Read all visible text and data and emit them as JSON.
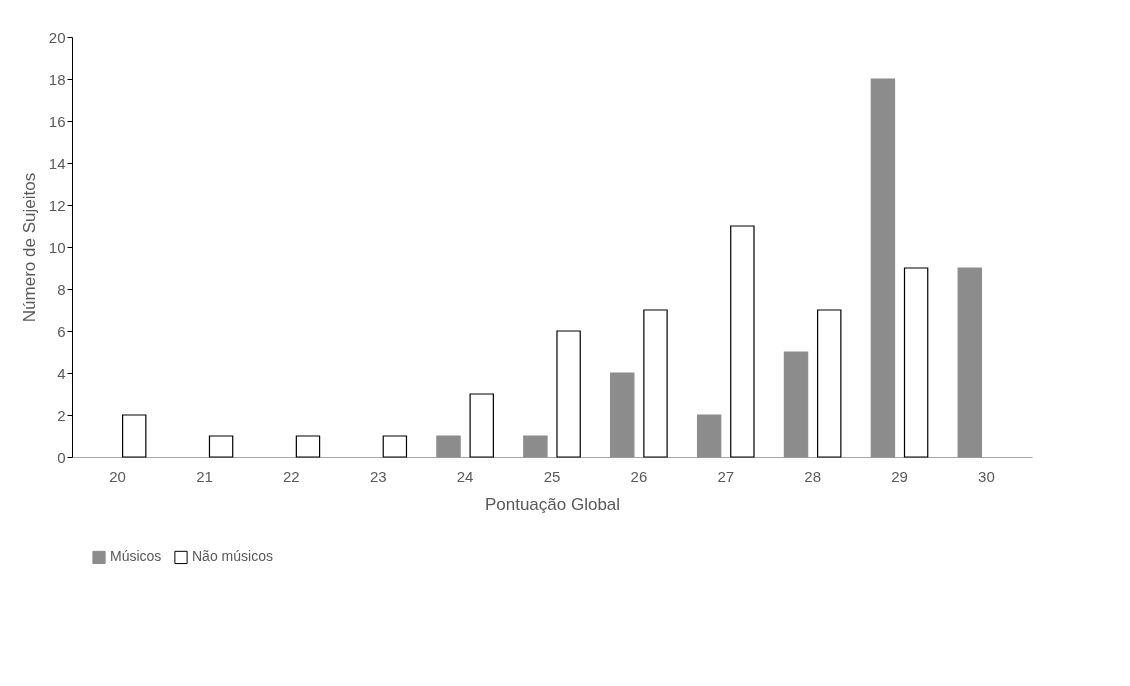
{
  "chart_data": {
    "type": "bar",
    "xlabel": "Pontuação Global",
    "ylabel": "Número de Sujeitos",
    "categories": [
      "20",
      "21",
      "22",
      "23",
      "24",
      "25",
      "26",
      "27",
      "28",
      "29",
      "30"
    ],
    "series": [
      {
        "name": "Músicos",
        "color": "#8c8c8c",
        "values": [
          0,
          0,
          0,
          0,
          1,
          1,
          4,
          2,
          5,
          18,
          9
        ]
      },
      {
        "name": "Não músicos",
        "color": "#ffffff",
        "values": [
          2,
          1,
          1,
          1,
          3,
          6,
          7,
          11,
          7,
          9,
          0
        ]
      }
    ],
    "ylim": [
      0,
      20
    ],
    "yticks": [
      0,
      2,
      4,
      6,
      8,
      10,
      12,
      14,
      16,
      18,
      20
    ],
    "grid": false,
    "legend": "bottom"
  }
}
